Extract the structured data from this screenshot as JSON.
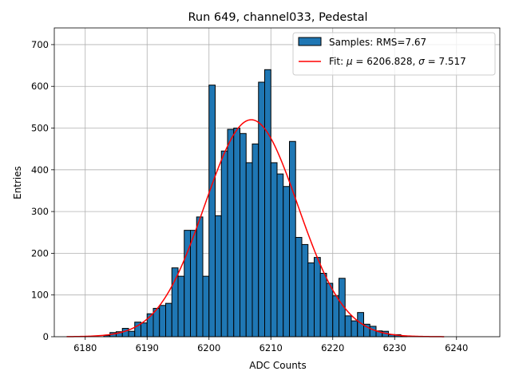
{
  "chart_data": {
    "type": "bar",
    "title": "Run 649, channel033, Pedestal",
    "xlabel": "ADC Counts",
    "ylabel": "Entries",
    "xlim": [
      6175,
      6247
    ],
    "ylim": [
      0,
      740
    ],
    "xticks": [
      6180,
      6190,
      6200,
      6210,
      6220,
      6230,
      6240
    ],
    "yticks": [
      0,
      100,
      200,
      300,
      400,
      500,
      600,
      700
    ],
    "grid": true,
    "legend_position": "top-right",
    "bar_color": "#1f77b4",
    "fit_color": "#ff0000",
    "bin_width": 1,
    "bin_start": 6183,
    "bin_values": [
      3,
      10,
      12,
      20,
      13,
      35,
      33,
      55,
      68,
      75,
      80,
      165,
      145,
      255,
      255,
      287,
      145,
      603,
      290,
      445,
      497,
      500,
      487,
      417,
      462,
      610,
      640,
      417,
      390,
      360,
      468,
      238,
      221,
      177,
      190,
      152,
      128,
      98,
      140,
      50,
      38,
      58,
      30,
      25,
      14,
      13,
      5,
      5,
      2
    ],
    "fit": {
      "mu": 6206.828,
      "sigma": 7.517,
      "amplitude": 520,
      "x_range": [
        6177,
        6238
      ]
    },
    "legend": [
      {
        "label": "Samples: RMS=7.67",
        "kind": "patch"
      },
      {
        "label_prefix": "Fit: ",
        "mu_symbol": "μ",
        "mu_text": " = 6206.828, ",
        "sigma_symbol": "σ",
        "sigma_text": " = 7.517",
        "kind": "line"
      }
    ]
  }
}
